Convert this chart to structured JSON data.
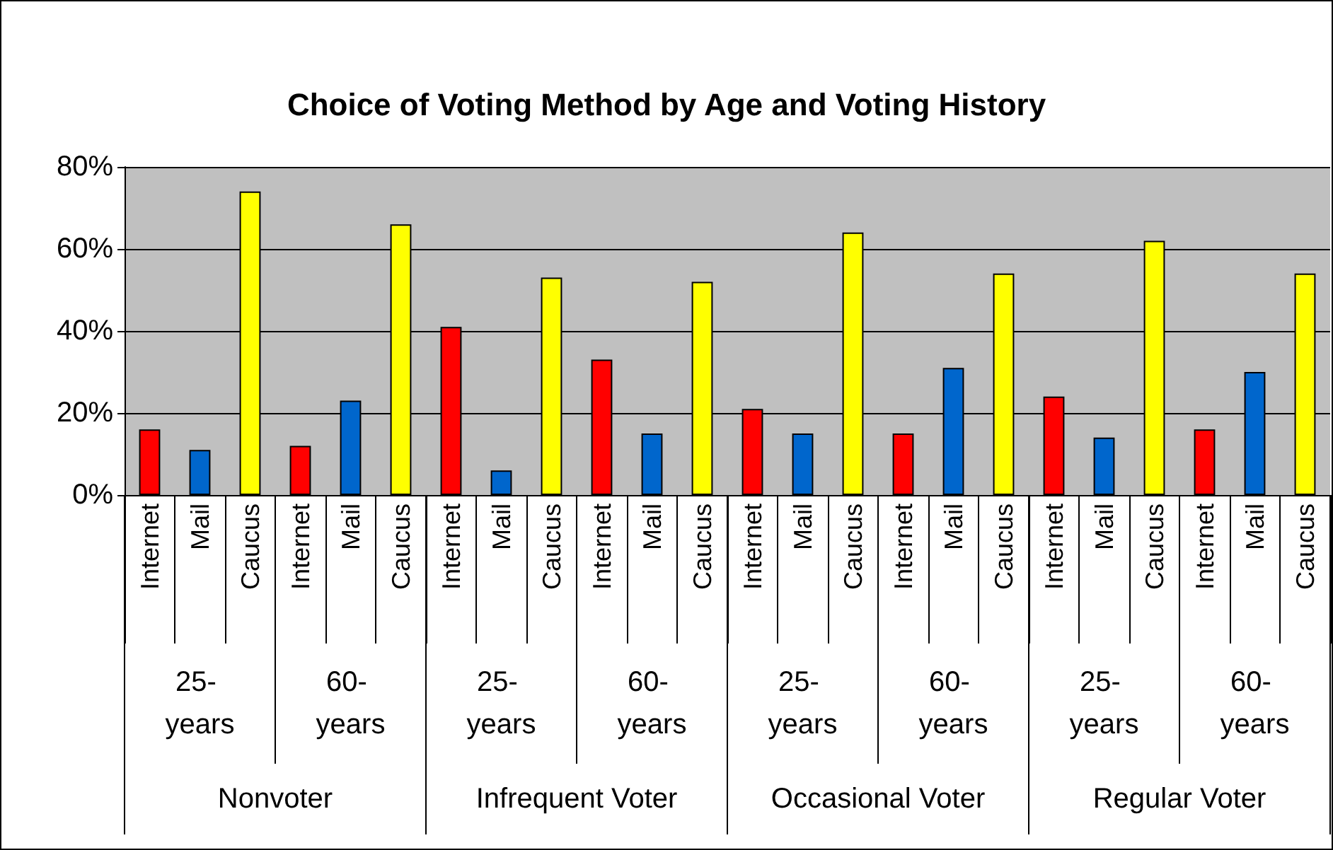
{
  "chart_data": {
    "type": "bar",
    "title": "Choice of Voting Method by Age and Voting History",
    "categories": [
      "Internet",
      "Mail",
      "Caucus",
      "Internet",
      "Mail",
      "Caucus",
      "Internet",
      "Mail",
      "Caucus",
      "Internet",
      "Mail",
      "Caucus",
      "Internet",
      "Mail",
      "Caucus",
      "Internet",
      "Mail",
      "Caucus",
      "Internet",
      "Mail",
      "Caucus",
      "Internet",
      "Mail",
      "Caucus"
    ],
    "values": [
      16,
      11,
      74,
      12,
      23,
      66,
      41,
      6,
      53,
      33,
      15,
      52,
      21,
      15,
      64,
      15,
      31,
      54,
      24,
      14,
      62,
      16,
      30,
      54
    ],
    "colors": [
      "#ff0000",
      "#0066cc",
      "#ffff00",
      "#ff0000",
      "#0066cc",
      "#ffff00",
      "#ff0000",
      "#0066cc",
      "#ffff00",
      "#ff0000",
      "#0066cc",
      "#ffff00",
      "#ff0000",
      "#0066cc",
      "#ffff00",
      "#ff0000",
      "#0066cc",
      "#ffff00",
      "#ff0000",
      "#0066cc",
      "#ffff00",
      "#ff0000",
      "#0066cc",
      "#ffff00"
    ],
    "ylim": [
      0,
      80
    ],
    "yticks": [
      {
        "value": 0,
        "label": "0%"
      },
      {
        "value": 20,
        "label": "20%"
      },
      {
        "value": 40,
        "label": "40%"
      },
      {
        "value": 60,
        "label": "60%"
      },
      {
        "value": 80,
        "label": "80%"
      }
    ],
    "grid": "y",
    "annotations": [
      "25- years",
      "60- years",
      "25- years",
      "60- years",
      "25- years",
      "60- years",
      "25- years",
      "60- years",
      "Nonvoter",
      "Infrequent Voter",
      "Occasional Voter",
      "Regular Voter"
    ]
  }
}
